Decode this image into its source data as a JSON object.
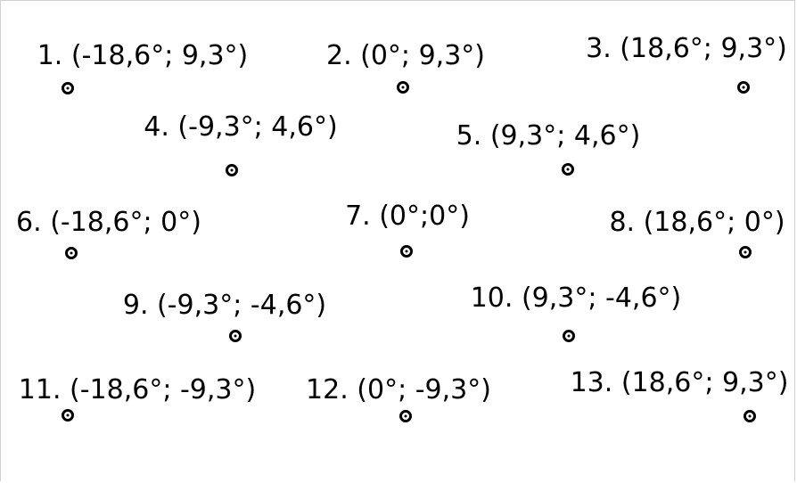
{
  "points": [
    {
      "label": "1. (-18,6°; 9,3°)"
    },
    {
      "label": "2. (0°; 9,3°)"
    },
    {
      "label": "3. (18,6°; 9,3°)"
    },
    {
      "label": "4. (-9,3°; 4,6°)"
    },
    {
      "label": "5. (9,3°; 4,6°)"
    },
    {
      "label": "6. (-18,6°; 0°)"
    },
    {
      "label": "7. (0°;0°)"
    },
    {
      "label": "8. (18,6°; 0°)"
    },
    {
      "label": "9. (-9,3°; -4,6°)"
    },
    {
      "label": "10. (9,3°; -4,6°)"
    },
    {
      "label": "11. (-18,6°; -9,3°)"
    },
    {
      "label": "12. (0°; -9,3°)"
    },
    {
      "label": "13. (18,6°; 9,3°)"
    }
  ],
  "colors": {
    "ink": "#000000",
    "background": "#ffffff"
  }
}
